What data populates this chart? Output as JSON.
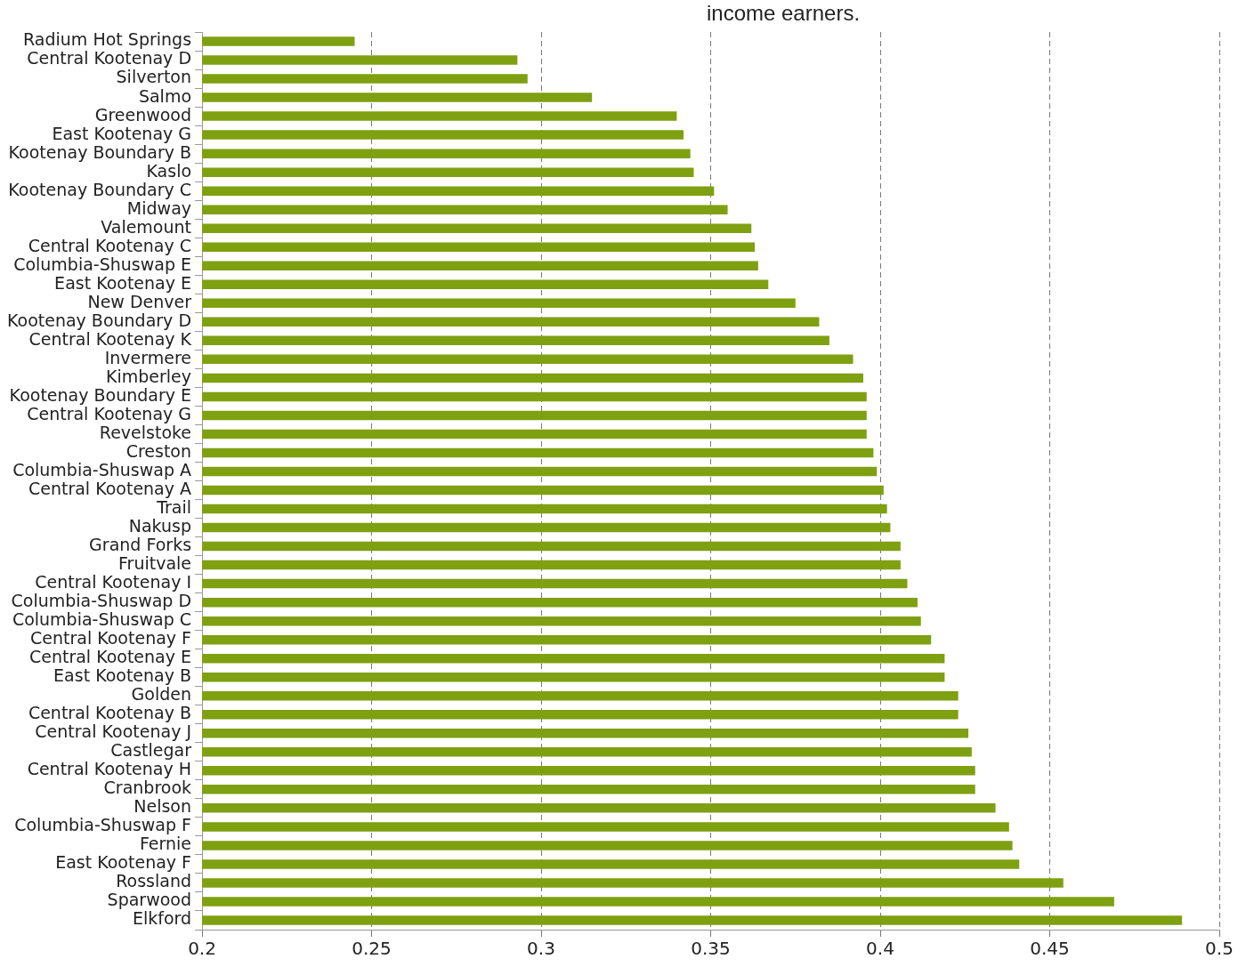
{
  "chart_data": {
    "type": "bar",
    "orientation": "horizontal",
    "annotations": [
      "income earners."
    ],
    "categories": [
      "Radium Hot Springs",
      "Central Kootenay D",
      "Silverton",
      "Salmo",
      "Greenwood",
      "East Kootenay G",
      "Kootenay Boundary B",
      "Kaslo",
      "Kootenay Boundary C",
      "Midway",
      "Valemount",
      "Central Kootenay C",
      "Columbia-Shuswap E",
      "East Kootenay E",
      "New Denver",
      "Kootenay Boundary D",
      "Central Kootenay K",
      "Invermere",
      "Kimberley",
      "Kootenay Boundary E",
      "Central Kootenay G",
      "Revelstoke",
      "Creston",
      "Columbia-Shuswap A",
      "Central Kootenay A",
      "Trail",
      "Nakusp",
      "Grand Forks",
      "Fruitvale",
      "Central Kootenay I",
      "Columbia-Shuswap D",
      "Columbia-Shuswap C",
      "Central Kootenay F",
      "Central Kootenay E",
      "East Kootenay B",
      "Golden",
      "Central Kootenay B",
      "Central Kootenay J",
      "Castlegar",
      "Central Kootenay H",
      "Cranbrook",
      "Nelson",
      "Columbia-Shuswap F",
      "Fernie",
      "East Kootenay F",
      "Rossland",
      "Sparwood",
      "Elkford"
    ],
    "values": [
      0.245,
      0.293,
      0.296,
      0.315,
      0.34,
      0.342,
      0.344,
      0.345,
      0.351,
      0.355,
      0.362,
      0.363,
      0.364,
      0.367,
      0.375,
      0.382,
      0.385,
      0.392,
      0.395,
      0.396,
      0.396,
      0.396,
      0.398,
      0.399,
      0.401,
      0.402,
      0.403,
      0.406,
      0.406,
      0.408,
      0.411,
      0.412,
      0.415,
      0.419,
      0.419,
      0.423,
      0.423,
      0.426,
      0.427,
      0.428,
      0.428,
      0.434,
      0.438,
      0.439,
      0.441,
      0.454,
      0.469,
      0.489
    ],
    "color": "#7fa010",
    "xlim": [
      0.2,
      0.5
    ],
    "xticks": [
      0.2,
      0.25,
      0.3,
      0.35,
      0.4,
      0.45,
      0.5
    ],
    "grid": "x",
    "legend": false
  }
}
